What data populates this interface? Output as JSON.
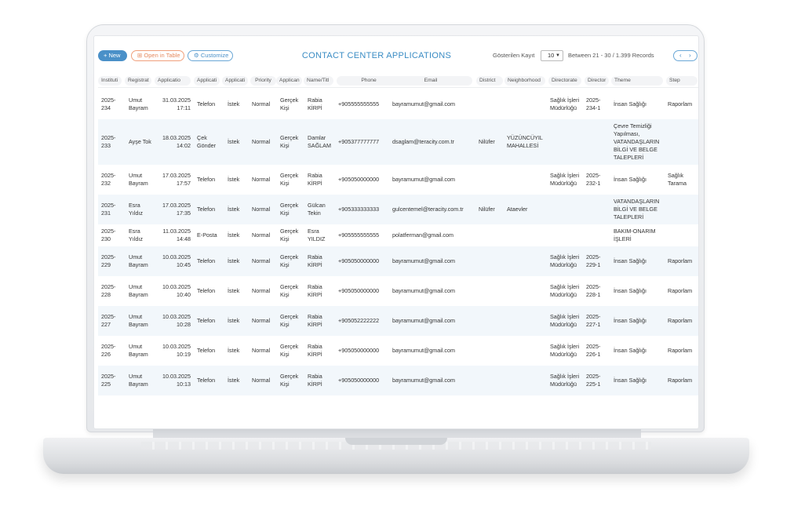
{
  "toolbar": {
    "new_label": "+ New",
    "open_label": "Open in Table",
    "customize_label": "Customize",
    "title": "CONTACT CENTER APPLICATIONS",
    "page_size_label": "Gösterilen Kayıt",
    "page_size": "10",
    "range": "Between 21 - 30  /  1.399 Records",
    "prev": "‹",
    "next": "›"
  },
  "columns": [
    "Instituti",
    "Registrat",
    "Applicatio",
    "Applicati",
    "Applicati",
    "Priority",
    "Applican",
    "Name/Titl",
    "Phone",
    "Email",
    "District",
    "Neighborhood",
    "Directorate",
    "Director",
    "Theme",
    "Step"
  ],
  "rows": [
    {
      "inst": "2025-234",
      "reg": "Umut Bayram",
      "date": "31.03.2025 17:11",
      "channel": "Telefon",
      "type": "İstek",
      "priority": "Normal",
      "applicant": "Gerçek Kişi",
      "name": "Rabia KİRPİ",
      "phone": "+905555555555",
      "email": "bayramumut@gmail.com",
      "district": "",
      "neighborhood": "",
      "directorate": "Sağlık İşleri Müdürlüğü",
      "dirno": "2025-234-1",
      "theme": "İnsan Sağlığı",
      "step": "Raporlam"
    },
    {
      "inst": "2025-233",
      "reg": "Ayşe Tok",
      "date": "18.03.2025 14:02",
      "channel": "Çek Gönder",
      "type": "İstek",
      "priority": "Normal",
      "applicant": "Gerçek Kişi",
      "name": "Damlar SAĞLAM",
      "phone": "+905377777777",
      "email": "dsaglam@teracity.com.tr",
      "district": "Nilüfer",
      "neighborhood": "YÜZÜNCÜYIL MAHALLESİ",
      "directorate": "",
      "dirno": "",
      "theme": "Çevre Temizliği Yapılması, VATANDAŞLARIN BİLGİ VE BELGE TALEPLERİ",
      "step": ""
    },
    {
      "inst": "2025-232",
      "reg": "Umut Bayram",
      "date": "17.03.2025 17:57",
      "channel": "Telefon",
      "type": "İstek",
      "priority": "Normal",
      "applicant": "Gerçek Kişi",
      "name": "Rabia KİRPİ",
      "phone": "+905050000000",
      "email": "bayramumut@gmail.com",
      "district": "",
      "neighborhood": "",
      "directorate": "Sağlık İşleri Müdürlüğü",
      "dirno": "2025-232-1",
      "theme": "İnsan Sağlığı",
      "step": "Sağlık Tarama"
    },
    {
      "inst": "2025-231",
      "reg": "Esra Yıldız",
      "date": "17.03.2025 17:35",
      "channel": "Telefon",
      "type": "İstek",
      "priority": "Normal",
      "applicant": "Gerçek Kişi",
      "name": "Gülcan Tekin",
      "phone": "+905333333333",
      "email": "gulcentemel@teracity.com.tr",
      "district": "Nilüfer",
      "neighborhood": "Ataevler",
      "directorate": "",
      "dirno": "",
      "theme": "VATANDAŞLARIN BİLGİ VE BELGE TALEPLERİ",
      "step": ""
    },
    {
      "inst": "2025-230",
      "reg": "Esra Yıldız",
      "date": "11.03.2025 14:48",
      "channel": "E-Posta",
      "type": "İstek",
      "priority": "Normal",
      "applicant": "Gerçek Kişi",
      "name": "Esra YILDIZ",
      "phone": "+905555555555",
      "email": "polatferman@gmail.com",
      "district": "",
      "neighborhood": "",
      "directorate": "",
      "dirno": "",
      "theme": "BAKIM-ONARIM İŞLERİ",
      "step": ""
    },
    {
      "inst": "2025-229",
      "reg": "Umut Bayram",
      "date": "10.03.2025 10:45",
      "channel": "Telefon",
      "type": "İstek",
      "priority": "Normal",
      "applicant": "Gerçek Kişi",
      "name": "Rabia KİRPİ",
      "phone": "+905050000000",
      "email": "bayramumut@gmail.com",
      "district": "",
      "neighborhood": "",
      "directorate": "Sağlık İşleri Müdürlüğü",
      "dirno": "2025-229-1",
      "theme": "İnsan Sağlığı",
      "step": "Raporlam"
    },
    {
      "inst": "2025-228",
      "reg": "Umut Bayram",
      "date": "10.03.2025 10:40",
      "channel": "Telefon",
      "type": "İstek",
      "priority": "Normal",
      "applicant": "Gerçek Kişi",
      "name": "Rabia KİRPİ",
      "phone": "+905050000000",
      "email": "bayramumut@gmail.com",
      "district": "",
      "neighborhood": "",
      "directorate": "Sağlık İşleri Müdürlüğü",
      "dirno": "2025-228-1",
      "theme": "İnsan Sağlığı",
      "step": "Raporlam"
    },
    {
      "inst": "2025-227",
      "reg": "Umut Bayram",
      "date": "10.03.2025 10:28",
      "channel": "Telefon",
      "type": "İstek",
      "priority": "Normal",
      "applicant": "Gerçek Kişi",
      "name": "Rabia KİRPİ",
      "phone": "+905052222222",
      "email": "bayramumut@gmail.com",
      "district": "",
      "neighborhood": "",
      "directorate": "Sağlık İşleri Müdürlüğü",
      "dirno": "2025-227-1",
      "theme": "İnsan Sağlığı",
      "step": "Raporlam"
    },
    {
      "inst": "2025-226",
      "reg": "Umut Bayram",
      "date": "10.03.2025 10:19",
      "channel": "Telefon",
      "type": "İstek",
      "priority": "Normal",
      "applicant": "Gerçek Kişi",
      "name": "Rabia KİRPİ",
      "phone": "+905050000000",
      "email": "bayramumut@gmail.com",
      "district": "",
      "neighborhood": "",
      "directorate": "Sağlık İşleri Müdürlüğü",
      "dirno": "2025-226-1",
      "theme": "İnsan Sağlığı",
      "step": "Raporlam"
    },
    {
      "inst": "2025-225",
      "reg": "Umut Bayram",
      "date": "10.03.2025 10:13",
      "channel": "Telefon",
      "type": "İstek",
      "priority": "Normal",
      "applicant": "Gerçek Kişi",
      "name": "Rabia KİRPİ",
      "phone": "+905050000000",
      "email": "bayramumut@gmail.com",
      "district": "",
      "neighborhood": "",
      "directorate": "Sağlık İşleri Müdürlüğü",
      "dirno": "2025-225-1",
      "theme": "İnsan Sağlığı",
      "step": "Raporlam"
    }
  ]
}
